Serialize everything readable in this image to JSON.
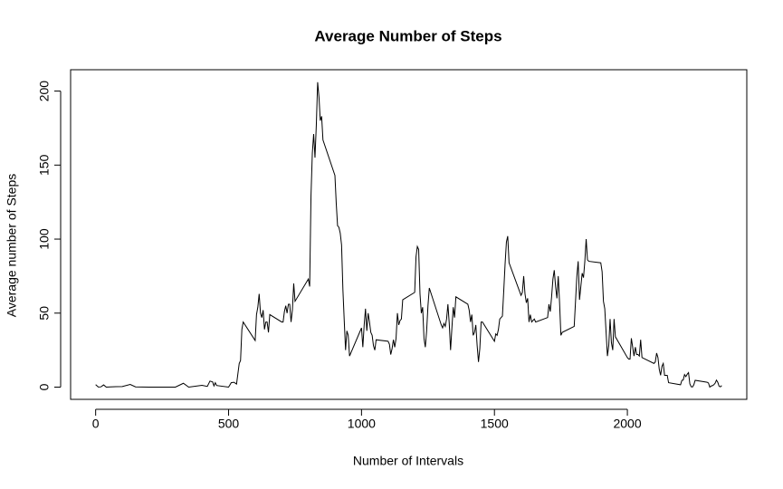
{
  "chart_data": {
    "type": "line",
    "title": "Average Number of Steps",
    "xlabel": "Number of Intervals",
    "ylabel": "Average number of Steps",
    "x": [
      0,
      10,
      20,
      30,
      40,
      55,
      100,
      130,
      150,
      200,
      230,
      300,
      330,
      350,
      400,
      420,
      430,
      440,
      445,
      450,
      455,
      500,
      510,
      520,
      530,
      540,
      545,
      550,
      555,
      600,
      605,
      610,
      615,
      620,
      625,
      630,
      635,
      640,
      645,
      650,
      655,
      700,
      705,
      710,
      715,
      720,
      725,
      730,
      735,
      740,
      745,
      750,
      800,
      805,
      810,
      815,
      820,
      825,
      830,
      835,
      840,
      845,
      850,
      855,
      900,
      905,
      910,
      915,
      920,
      925,
      930,
      935,
      940,
      945,
      950,
      955,
      1000,
      1005,
      1010,
      1015,
      1020,
      1025,
      1030,
      1035,
      1040,
      1045,
      1050,
      1055,
      1100,
      1105,
      1110,
      1115,
      1120,
      1125,
      1130,
      1135,
      1140,
      1145,
      1150,
      1155,
      1200,
      1205,
      1210,
      1215,
      1220,
      1225,
      1230,
      1235,
      1240,
      1245,
      1250,
      1255,
      1300,
      1305,
      1310,
      1315,
      1320,
      1325,
      1330,
      1335,
      1340,
      1345,
      1350,
      1355,
      1400,
      1405,
      1410,
      1415,
      1420,
      1425,
      1430,
      1435,
      1440,
      1445,
      1450,
      1455,
      1500,
      1505,
      1510,
      1515,
      1520,
      1525,
      1530,
      1535,
      1540,
      1545,
      1550,
      1555,
      1600,
      1605,
      1610,
      1615,
      1620,
      1625,
      1630,
      1635,
      1640,
      1645,
      1650,
      1655,
      1700,
      1705,
      1710,
      1715,
      1720,
      1725,
      1730,
      1735,
      1740,
      1745,
      1750,
      1755,
      1800,
      1805,
      1810,
      1815,
      1820,
      1825,
      1830,
      1835,
      1840,
      1845,
      1850,
      1855,
      1900,
      1905,
      1910,
      1915,
      1920,
      1925,
      1930,
      1935,
      1940,
      1945,
      1950,
      1955,
      2000,
      2005,
      2010,
      2015,
      2020,
      2025,
      2030,
      2035,
      2040,
      2045,
      2050,
      2055,
      2100,
      2105,
      2110,
      2115,
      2120,
      2125,
      2130,
      2135,
      2140,
      2145,
      2150,
      2155,
      2200,
      2205,
      2210,
      2215,
      2220,
      2225,
      2230,
      2235,
      2240,
      2245,
      2250,
      2255,
      2300,
      2305,
      2310,
      2315,
      2320,
      2325,
      2330,
      2335,
      2340,
      2345,
      2350,
      2355
    ],
    "series": [
      {
        "color": "#000000",
        "values": [
          1.7,
          0.1,
          0.2,
          1.5,
          0,
          0.2,
          0.4,
          1.8,
          0.2,
          0,
          0,
          0,
          2.6,
          0,
          1.2,
          0.5,
          4.1,
          3.5,
          0.8,
          3,
          1.1,
          0,
          3,
          3.3,
          2.1,
          16,
          18,
          39,
          44,
          31.5,
          49,
          54,
          63,
          50,
          47,
          52,
          39,
          44,
          44,
          37,
          49,
          44,
          44,
          51,
          55,
          50,
          56,
          56,
          44,
          52,
          70,
          58,
          73,
          68,
          129,
          158,
          171,
          155,
          177,
          206,
          196,
          180,
          183,
          167,
          143,
          124,
          109,
          108,
          104,
          96,
          66,
          45,
          25,
          38,
          35,
          21,
          40,
          27,
          42,
          53,
          38,
          50,
          44,
          37,
          35,
          28,
          25,
          32,
          31,
          29,
          22,
          26,
          32,
          27,
          33,
          50,
          42,
          45,
          46,
          59,
          64,
          88,
          95,
          93,
          63,
          50,
          54,
          33,
          27,
          38,
          55,
          67,
          42,
          40,
          43,
          41,
          46,
          56,
          43,
          25,
          40,
          54,
          47,
          61,
          56,
          52,
          44,
          49,
          35,
          37,
          42,
          28,
          17,
          26,
          44,
          44,
          31,
          36,
          35,
          39,
          46,
          47,
          48,
          65,
          83,
          98,
          102,
          84,
          62,
          64,
          75,
          63,
          57,
          60,
          44,
          49,
          44,
          45,
          46,
          44,
          47,
          56,
          51,
          61,
          73,
          79,
          68,
          60,
          75,
          57,
          35,
          37,
          41,
          58,
          75,
          85,
          59,
          68,
          77,
          74,
          85,
          100,
          86,
          85,
          84,
          78,
          58,
          53,
          37,
          21,
          28,
          46,
          30,
          25,
          46,
          34,
          20,
          19,
          19,
          33,
          27,
          21,
          27,
          22,
          22,
          21,
          32,
          20,
          16,
          17,
          23,
          20,
          12,
          8,
          14,
          16,
          8,
          8,
          8,
          3,
          1.6,
          4.6,
          4.8,
          8.5,
          7.1,
          8.7,
          9.8,
          2.2,
          0.3,
          0.1,
          1.6,
          4.6,
          3.3,
          2.8,
          0,
          0.8,
          1,
          1.6,
          2.6,
          4.7,
          3.3,
          0.6,
          0.2,
          1.1
        ]
      }
    ],
    "xlim": [
      -94.2,
      2449.2
    ],
    "ylim": [
      -8.25,
      214.42
    ],
    "xticks": [
      0,
      500,
      1000,
      1500,
      2000
    ],
    "yticks": [
      0,
      50,
      100,
      150,
      200
    ]
  }
}
